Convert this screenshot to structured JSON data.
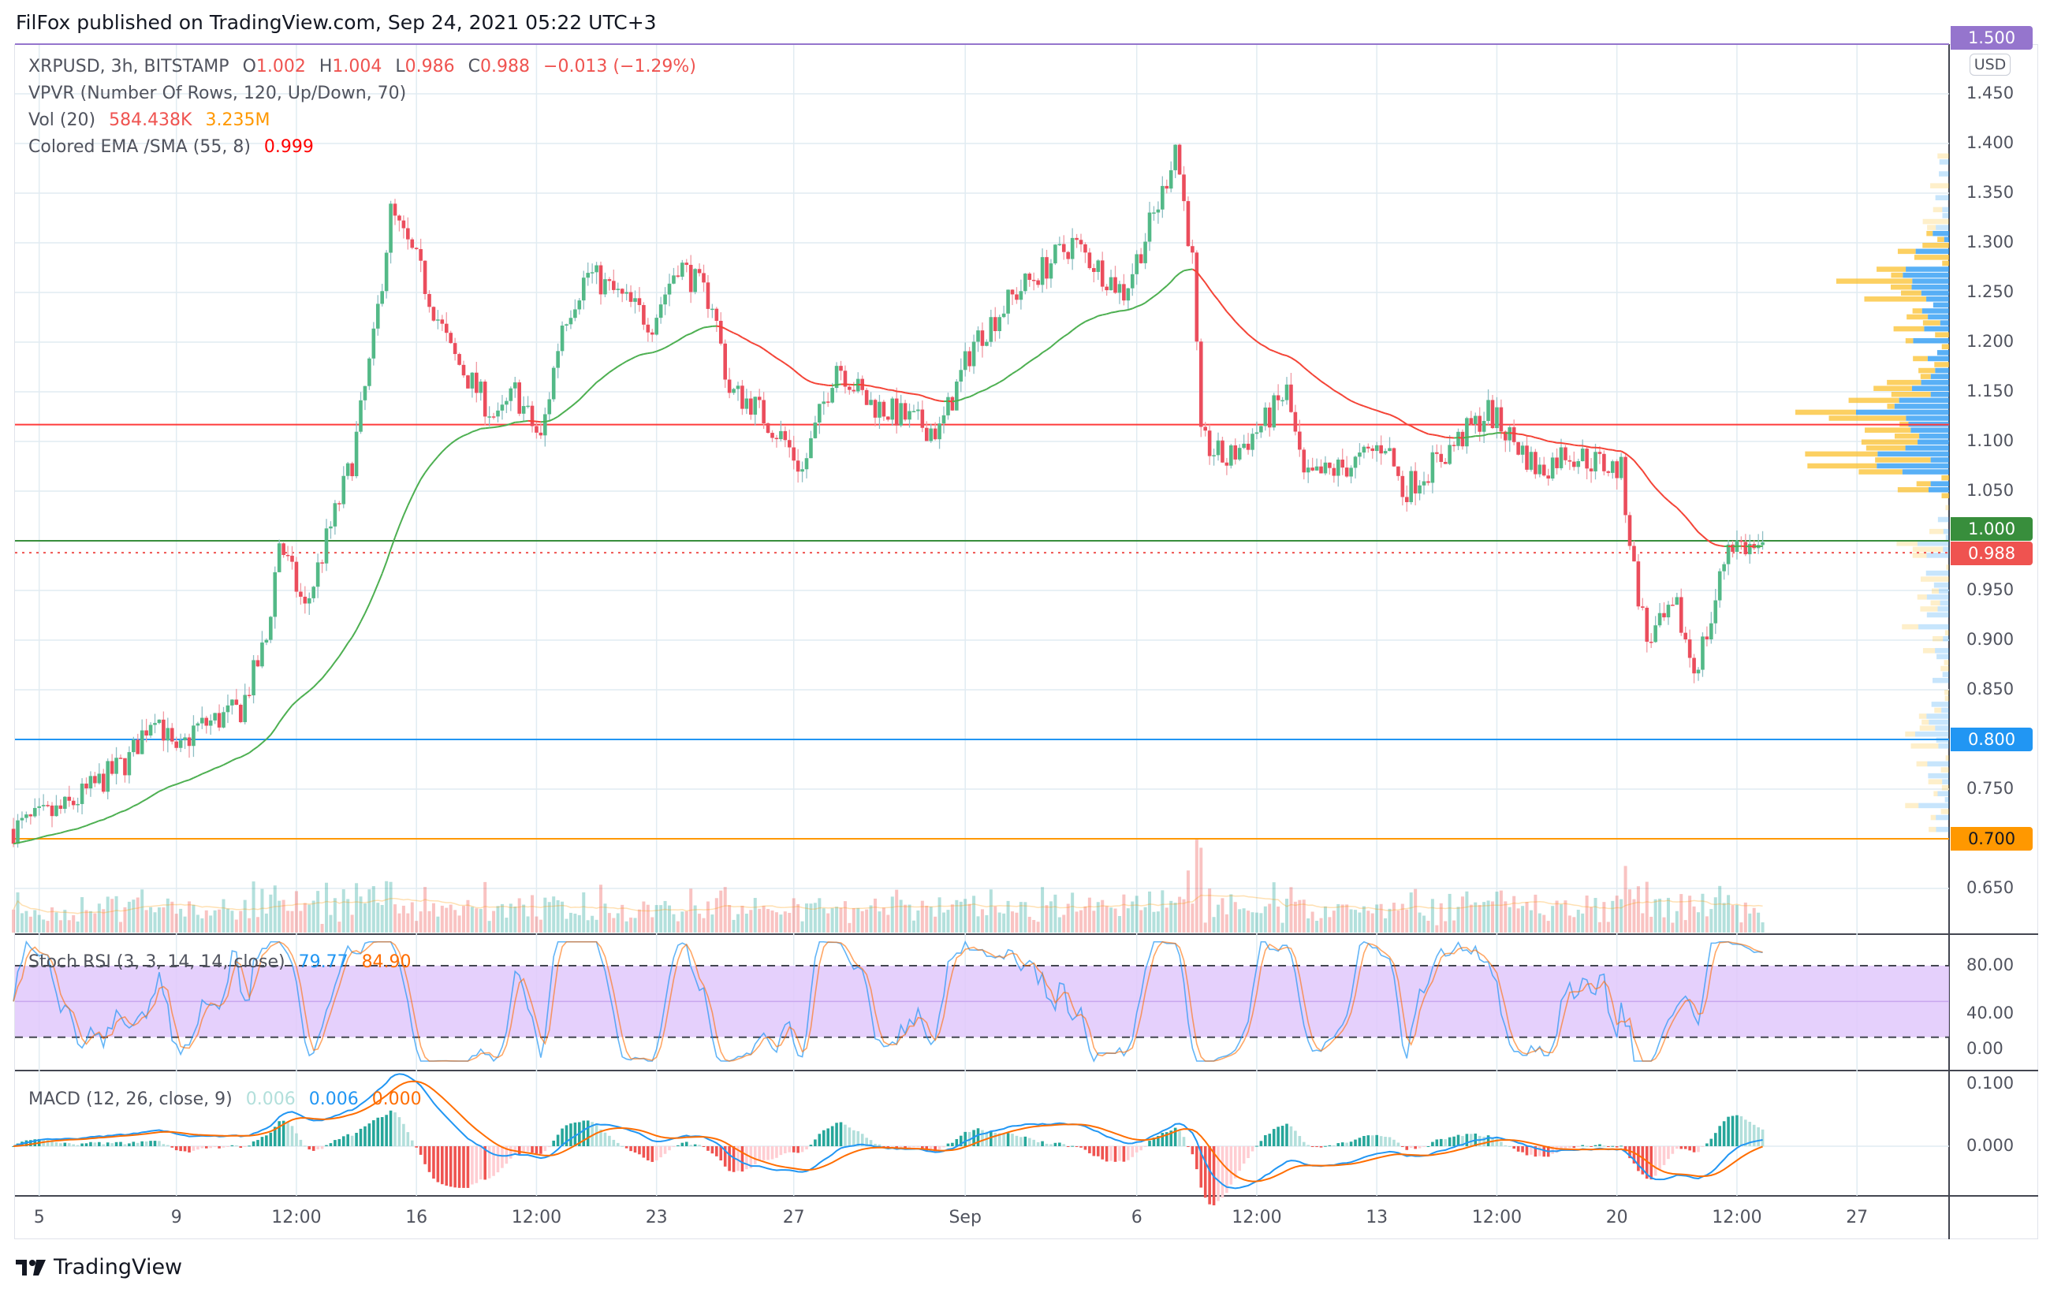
{
  "header": {
    "published": "FilFox published on TradingView.com, Sep 24, 2021 05:22 UTC+3"
  },
  "legend": {
    "symbol": "XRPUSD, 3h, BITSTAMP",
    "o_label": "O",
    "o": "1.002",
    "h_label": "H",
    "h": "1.004",
    "l_label": "L",
    "l": "0.986",
    "c_label": "C",
    "c": "0.988",
    "change": "−0.013 (−1.29%)",
    "vpvr": "VPVR (Number Of Rows, 120, Up/Down, 70)",
    "vol": "Vol (20)",
    "vol_v1": "584.438K",
    "vol_v2": "3.235M",
    "ema": "Colored EMA /SMA (55, 8)",
    "ema_v": "0.999",
    "stoch": "Stoch RSI (3, 3, 14, 14, close)",
    "stoch_k": "79.77",
    "stoch_d": "84.90",
    "macd": "MACD (12, 26, close, 9)",
    "macd_hist": "0.006",
    "macd_v": "0.006",
    "macd_sig": "0.000"
  },
  "price_axis": {
    "currency": "USD",
    "ticks": [
      "1.450",
      "1.400",
      "1.350",
      "1.300",
      "1.250",
      "1.200",
      "1.150",
      "1.100",
      "1.050",
      "0.950",
      "0.900",
      "0.850",
      "0.750",
      "0.650"
    ],
    "badges": [
      {
        "text": "1.500",
        "value": 1.5,
        "color": "#9575cd",
        "text_color": "#ffffff"
      },
      {
        "text": "1.000",
        "value": 1.0,
        "color": "#388e3c",
        "text_color": "#ffffff"
      },
      {
        "text": "0.988",
        "value": 0.988,
        "color": "#ef5350",
        "text_color": "#ffffff"
      },
      {
        "text": "0.800",
        "value": 0.8,
        "color": "#2196f3",
        "text_color": "#ffffff"
      },
      {
        "text": "0.700",
        "value": 0.7,
        "color": "#ff9800",
        "text_color": "#131722"
      }
    ]
  },
  "stoch_axis": {
    "ticks": [
      "80.00",
      "40.00",
      "0.00"
    ],
    "bands": [
      20,
      80
    ]
  },
  "macd_axis": {
    "ticks": [
      "0.100",
      "0.000"
    ]
  },
  "time_axis": {
    "labels": [
      {
        "text": "5",
        "t": "2021-08-05T00:00Z"
      },
      {
        "text": "9",
        "t": "2021-08-09T00:00Z"
      },
      {
        "text": "12:00",
        "t": "2021-08-12T12:00Z"
      },
      {
        "text": "16",
        "t": "2021-08-16T00:00Z"
      },
      {
        "text": "12:00",
        "t": "2021-08-19T12:00Z"
      },
      {
        "text": "23",
        "t": "2021-08-23T00:00Z"
      },
      {
        "text": "27",
        "t": "2021-08-27T00:00Z"
      },
      {
        "text": "Sep",
        "t": "2021-09-01T00:00Z"
      },
      {
        "text": "6",
        "t": "2021-09-06T00:00Z"
      },
      {
        "text": "12:00",
        "t": "2021-09-09T12:00Z"
      },
      {
        "text": "13",
        "t": "2021-09-13T00:00Z"
      },
      {
        "text": "12:00",
        "t": "2021-09-16T12:00Z"
      },
      {
        "text": "20",
        "t": "2021-09-20T00:00Z"
      },
      {
        "text": "12:00",
        "t": "2021-09-23T12:00Z"
      },
      {
        "text": "27",
        "t": "2021-09-27T00:00Z"
      }
    ]
  },
  "horizontal_levels": [
    {
      "value": 1.5,
      "color": "#9575cd",
      "style": "solid"
    },
    {
      "value": 1.117,
      "color": "#ff3b3b",
      "style": "solid"
    },
    {
      "value": 1.0,
      "color": "#388e3c",
      "style": "solid"
    },
    {
      "value": 0.988,
      "color": "#ef5350",
      "style": "dotted"
    },
    {
      "value": 0.8,
      "color": "#2196f3",
      "style": "solid"
    },
    {
      "value": 0.7,
      "color": "#ff9800",
      "style": "solid"
    }
  ],
  "colors": {
    "up": "#26a69a",
    "down": "#ef5350",
    "candle_up": "#53b987",
    "candle_down": "#eb4d5c",
    "ema_up": "#4caf50",
    "ema_down": "#f44336",
    "stoch_k": "#2196f3",
    "stoch_d": "#ff6d00",
    "stoch_band": "#e1c8fb",
    "macd": "#2196f3",
    "signal": "#ff6d00",
    "vp_up": "#2196f3",
    "vp_down": "#fbc02d"
  },
  "chart_data": {
    "type": "candlestick",
    "interval": "3h",
    "ylim": [
      0.625,
      1.5
    ],
    "last_candle": {
      "open": 1.002,
      "high": 1.004,
      "low": 0.986,
      "close": 0.988
    },
    "price_path": [
      [
        "2021-08-04T06:00Z",
        0.71
      ],
      [
        "2021-08-05T18:00Z",
        0.73
      ],
      [
        "2021-08-07T15:00Z",
        0.78
      ],
      [
        "2021-08-08T09:00Z",
        0.83
      ],
      [
        "2021-08-09T00:00Z",
        0.78
      ],
      [
        "2021-08-09T12:00Z",
        0.81
      ],
      [
        "2021-08-10T21:00Z",
        0.83
      ],
      [
        "2021-08-11T15:00Z",
        0.9
      ],
      [
        "2021-08-12T00:00Z",
        1.0
      ],
      [
        "2021-08-12T18:00Z",
        0.93
      ],
      [
        "2021-08-13T09:00Z",
        1.0
      ],
      [
        "2021-08-14T03:00Z",
        1.08
      ],
      [
        "2021-08-14T18:00Z",
        1.2
      ],
      [
        "2021-08-15T06:00Z",
        1.33
      ],
      [
        "2021-08-16T00:00Z",
        1.28
      ],
      [
        "2021-08-17T00:00Z",
        1.19
      ],
      [
        "2021-08-18T09:00Z",
        1.12
      ],
      [
        "2021-08-18T21:00Z",
        1.15
      ],
      [
        "2021-08-19T15:00Z",
        1.1
      ],
      [
        "2021-08-20T06:00Z",
        1.22
      ],
      [
        "2021-08-21T00:00Z",
        1.27
      ],
      [
        "2021-08-22T03:00Z",
        1.24
      ],
      [
        "2021-08-22T21:00Z",
        1.22
      ],
      [
        "2021-08-23T15:00Z",
        1.28
      ],
      [
        "2021-08-24T15:00Z",
        1.24
      ],
      [
        "2021-08-25T03:00Z",
        1.15
      ],
      [
        "2021-08-25T18:00Z",
        1.14
      ],
      [
        "2021-08-26T18:00Z",
        1.1
      ],
      [
        "2021-08-27T06:00Z",
        1.07
      ],
      [
        "2021-08-28T06:00Z",
        1.18
      ],
      [
        "2021-08-29T03:00Z",
        1.14
      ],
      [
        "2021-08-30T12:00Z",
        1.12
      ],
      [
        "2021-08-31T06:00Z",
        1.11
      ],
      [
        "2021-09-01T06:00Z",
        1.2
      ],
      [
        "2021-09-02T12:00Z",
        1.25
      ],
      [
        "2021-09-04T03:00Z",
        1.3
      ],
      [
        "2021-09-05T15:00Z",
        1.25
      ],
      [
        "2021-09-06T18:00Z",
        1.35
      ],
      [
        "2021-09-07T03:00Z",
        1.4
      ],
      [
        "2021-09-07T15:00Z",
        1.28
      ],
      [
        "2021-09-07T21:00Z",
        1.1
      ],
      [
        "2021-09-08T15:00Z",
        1.08
      ],
      [
        "2021-09-09T18:00Z",
        1.12
      ],
      [
        "2021-09-10T09:00Z",
        1.15
      ],
      [
        "2021-09-10T21:00Z",
        1.06
      ],
      [
        "2021-09-12T12:00Z",
        1.08
      ],
      [
        "2021-09-13T06:00Z",
        1.1
      ],
      [
        "2021-09-13T18:00Z",
        1.05
      ],
      [
        "2021-09-14T18:00Z",
        1.08
      ],
      [
        "2021-09-16T06:00Z",
        1.13
      ],
      [
        "2021-09-17T18:00Z",
        1.07
      ],
      [
        "2021-09-18T12:00Z",
        1.09
      ],
      [
        "2021-09-20T03:00Z",
        1.07
      ],
      [
        "2021-09-20T12:00Z",
        0.97
      ],
      [
        "2021-09-20T21:00Z",
        0.9
      ],
      [
        "2021-09-21T18:00Z",
        0.93
      ],
      [
        "2021-09-22T06:00Z",
        0.87
      ],
      [
        "2021-09-22T18:00Z",
        0.92
      ],
      [
        "2021-09-23T06:00Z",
        1.0
      ],
      [
        "2021-09-24T06:00Z",
        0.988
      ]
    ]
  }
}
